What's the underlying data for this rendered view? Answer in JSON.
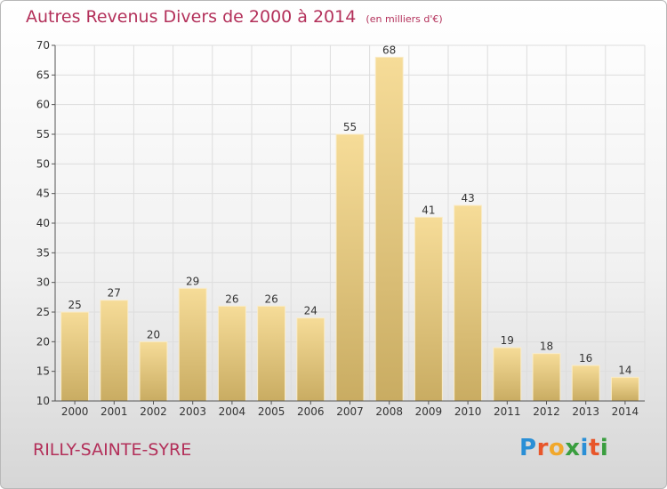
{
  "title": "Autres Revenus Divers de 2000 à 2014",
  "subtitle": "(en milliers d'€)",
  "commune": "RILLY-SAINTE-SYRE",
  "logo": {
    "text": "Proxiti",
    "letters": [
      "P",
      "r",
      "o",
      "x",
      "i",
      "t",
      "i"
    ],
    "colors": [
      "#2a8fd6",
      "#e8562a",
      "#f1a82c",
      "#3a9e3f",
      "#2a8fd6",
      "#e8562a",
      "#3a9e3f"
    ]
  },
  "colors": {
    "title": "#b3305a",
    "bar_top": "#f6dc98",
    "bar_bottom": "#c9ac62",
    "grid": "#dddddd",
    "axis": "#555555"
  },
  "chart_data": {
    "type": "bar",
    "categories": [
      "2000",
      "2001",
      "2002",
      "2003",
      "2004",
      "2005",
      "2006",
      "2007",
      "2008",
      "2009",
      "2010",
      "2011",
      "2012",
      "2013",
      "2014"
    ],
    "values": [
      25,
      27,
      20,
      29,
      26,
      26,
      24,
      55,
      68,
      41,
      43,
      19,
      18,
      16,
      14
    ],
    "title": "Autres Revenus Divers de 2000 à 2014",
    "subtitle": "(en milliers d'€)",
    "ylim": [
      10,
      70
    ],
    "yticks": [
      10,
      15,
      20,
      25,
      30,
      35,
      40,
      45,
      50,
      55,
      60,
      65,
      70
    ],
    "grid": true,
    "legend": "none"
  }
}
